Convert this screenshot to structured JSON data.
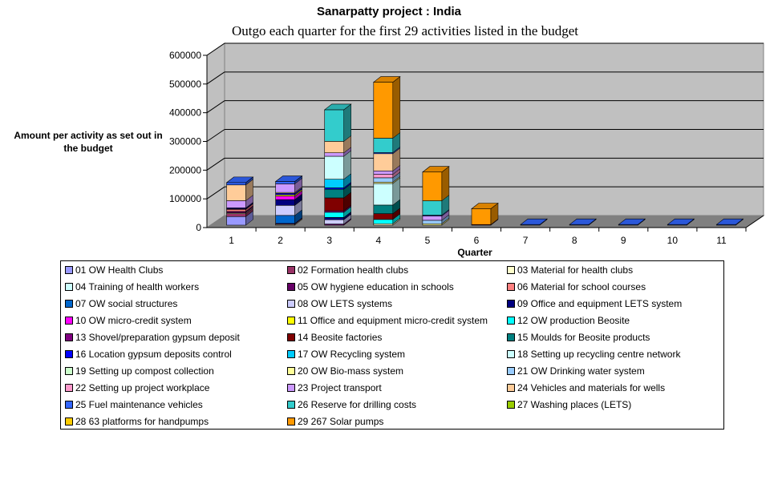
{
  "chart_data": {
    "type": "bar",
    "stacked": true,
    "style": "3d-stacked-column",
    "title": "Sanarpatty project : India",
    "subtitle": "Outgo each quarter for the first 29 activities listed in the budget",
    "xlabel": "Quarter",
    "ylabel": "Amount per activity as set out in the budget",
    "ylim": [
      0,
      600000
    ],
    "yticks": [
      "0",
      "100000",
      "200000",
      "300000",
      "400000",
      "500000",
      "600000"
    ],
    "ytick_values": [
      0,
      100000,
      200000,
      300000,
      400000,
      500000,
      600000
    ],
    "grid": true,
    "legend_position": "bottom",
    "categories": [
      "1",
      "2",
      "3",
      "4",
      "5",
      "6",
      "7",
      "8",
      "9",
      "10",
      "11"
    ],
    "series": [
      {
        "name": "01 OW Health Clubs",
        "color": "#9999ff",
        "values": [
          30000,
          0,
          0,
          0,
          0,
          0,
          0,
          0,
          0,
          0,
          0
        ]
      },
      {
        "name": "02 Formation health clubs",
        "color": "#993366",
        "values": [
          10000,
          0,
          0,
          0,
          0,
          0,
          0,
          0,
          0,
          0,
          0
        ]
      },
      {
        "name": "03 Material for health clubs",
        "color": "#ffffcc",
        "values": [
          3000,
          3000,
          0,
          5000,
          0,
          0,
          0,
          0,
          0,
          0,
          0
        ]
      },
      {
        "name": "04 Training of health workers",
        "color": "#ccffff",
        "values": [
          0,
          0,
          0,
          0,
          0,
          0,
          0,
          0,
          0,
          0,
          0
        ]
      },
      {
        "name": "05 OW hygiene education in schools",
        "color": "#660066",
        "values": [
          5000,
          3000,
          4000,
          0,
          0,
          0,
          0,
          0,
          0,
          0,
          0
        ]
      },
      {
        "name": "06 Material for school courses",
        "color": "#ff8080",
        "values": [
          7000,
          0,
          0,
          0,
          0,
          0,
          0,
          0,
          0,
          0,
          0
        ]
      },
      {
        "name": "07 OW social structures",
        "color": "#0066cc",
        "values": [
          0,
          28000,
          0,
          0,
          0,
          0,
          0,
          0,
          0,
          0,
          0
        ]
      },
      {
        "name": "08 OW LETS systems",
        "color": "#ccccff",
        "values": [
          0,
          35000,
          15000,
          0,
          0,
          0,
          0,
          0,
          0,
          0,
          0
        ]
      },
      {
        "name": "09 Office and equipment LETS system",
        "color": "#000080",
        "values": [
          3000,
          20000,
          8000,
          0,
          0,
          0,
          0,
          0,
          0,
          0,
          0
        ]
      },
      {
        "name": "10 OW micro-credit system",
        "color": "#ff00ff",
        "values": [
          0,
          12000,
          0,
          0,
          0,
          0,
          0,
          0,
          0,
          0,
          0
        ]
      },
      {
        "name": "11 Office and equipment micro-credit system",
        "color": "#ffff00",
        "values": [
          0,
          5000,
          0,
          0,
          0,
          0,
          0,
          0,
          0,
          0,
          0
        ]
      },
      {
        "name": "12 OW  production Beosite",
        "color": "#00ffff",
        "values": [
          0,
          0,
          18000,
          15000,
          0,
          0,
          0,
          0,
          0,
          0,
          0
        ]
      },
      {
        "name": "13 Shovel/preparation gypsum deposit",
        "color": "#800080",
        "values": [
          0,
          0,
          5000,
          0,
          0,
          0,
          0,
          0,
          0,
          0,
          0
        ]
      },
      {
        "name": "14 Beosite factories",
        "color": "#800000",
        "values": [
          0,
          0,
          45000,
          20000,
          0,
          2000,
          0,
          0,
          0,
          0,
          0
        ]
      },
      {
        "name": "15 Moulds for Beosite products",
        "color": "#008080",
        "values": [
          0,
          0,
          30000,
          30000,
          0,
          0,
          0,
          0,
          0,
          0,
          0
        ]
      },
      {
        "name": "16 Location gypsum deposits control",
        "color": "#0000ff",
        "values": [
          2000,
          5000,
          5000,
          0,
          0,
          0,
          0,
          0,
          0,
          0,
          0
        ]
      },
      {
        "name": "17 OW Recycling system",
        "color": "#00ccff",
        "values": [
          0,
          0,
          30000,
          0,
          0,
          0,
          0,
          0,
          0,
          0,
          0
        ]
      },
      {
        "name": "18 Setting up recycling centre network",
        "color": "#ccffff",
        "values": [
          0,
          0,
          80000,
          75000,
          0,
          0,
          0,
          0,
          0,
          0,
          0
        ]
      },
      {
        "name": "19 Setting up compost collection",
        "color": "#ccffcc",
        "values": [
          0,
          0,
          0,
          0,
          0,
          0,
          0,
          0,
          0,
          0,
          0
        ]
      },
      {
        "name": "20 OW Bio-mass system",
        "color": "#ffff99",
        "values": [
          0,
          3000,
          0,
          5000,
          5000,
          0,
          0,
          0,
          0,
          0,
          0
        ]
      },
      {
        "name": "21 OW Drinking water system",
        "color": "#99ccff",
        "values": [
          0,
          0,
          0,
          15000,
          12000,
          0,
          0,
          0,
          0,
          0,
          0
        ]
      },
      {
        "name": "22 Setting up project workplace",
        "color": "#ff99cc",
        "values": [
          0,
          0,
          0,
          12000,
          0,
          0,
          0,
          0,
          0,
          0,
          0
        ]
      },
      {
        "name": "23 Project transport",
        "color": "#cc99ff",
        "values": [
          25000,
          30000,
          12000,
          12000,
          15000,
          0,
          0,
          0,
          0,
          0,
          0
        ]
      },
      {
        "name": "24 Vehicles and materials for wells",
        "color": "#ffcc99",
        "values": [
          55000,
          0,
          40000,
          60000,
          0,
          0,
          0,
          0,
          0,
          0,
          0
        ]
      },
      {
        "name": "25 Fuel maintenance vehicles",
        "color": "#3366ff",
        "values": [
          8000,
          8000,
          0,
          4000,
          3000,
          0,
          1000,
          1000,
          1000,
          1000,
          1000
        ]
      },
      {
        "name": "26 Reserve for drilling costs",
        "color": "#33cccc",
        "values": [
          0,
          0,
          110000,
          50000,
          50000,
          0,
          0,
          0,
          0,
          0,
          0
        ]
      },
      {
        "name": "27 Washing places (LETS)",
        "color": "#99cc00",
        "values": [
          0,
          0,
          0,
          0,
          0,
          0,
          0,
          0,
          0,
          0,
          0
        ]
      },
      {
        "name": "28 63 platforms for handpumps",
        "color": "#ffcc00",
        "values": [
          0,
          0,
          0,
          0,
          0,
          0,
          0,
          0,
          0,
          0,
          0
        ]
      },
      {
        "name": "29 267 Solar pumps",
        "color": "#ff9900",
        "values": [
          0,
          0,
          0,
          195000,
          100000,
          55000,
          0,
          0,
          0,
          0,
          0
        ]
      }
    ]
  }
}
